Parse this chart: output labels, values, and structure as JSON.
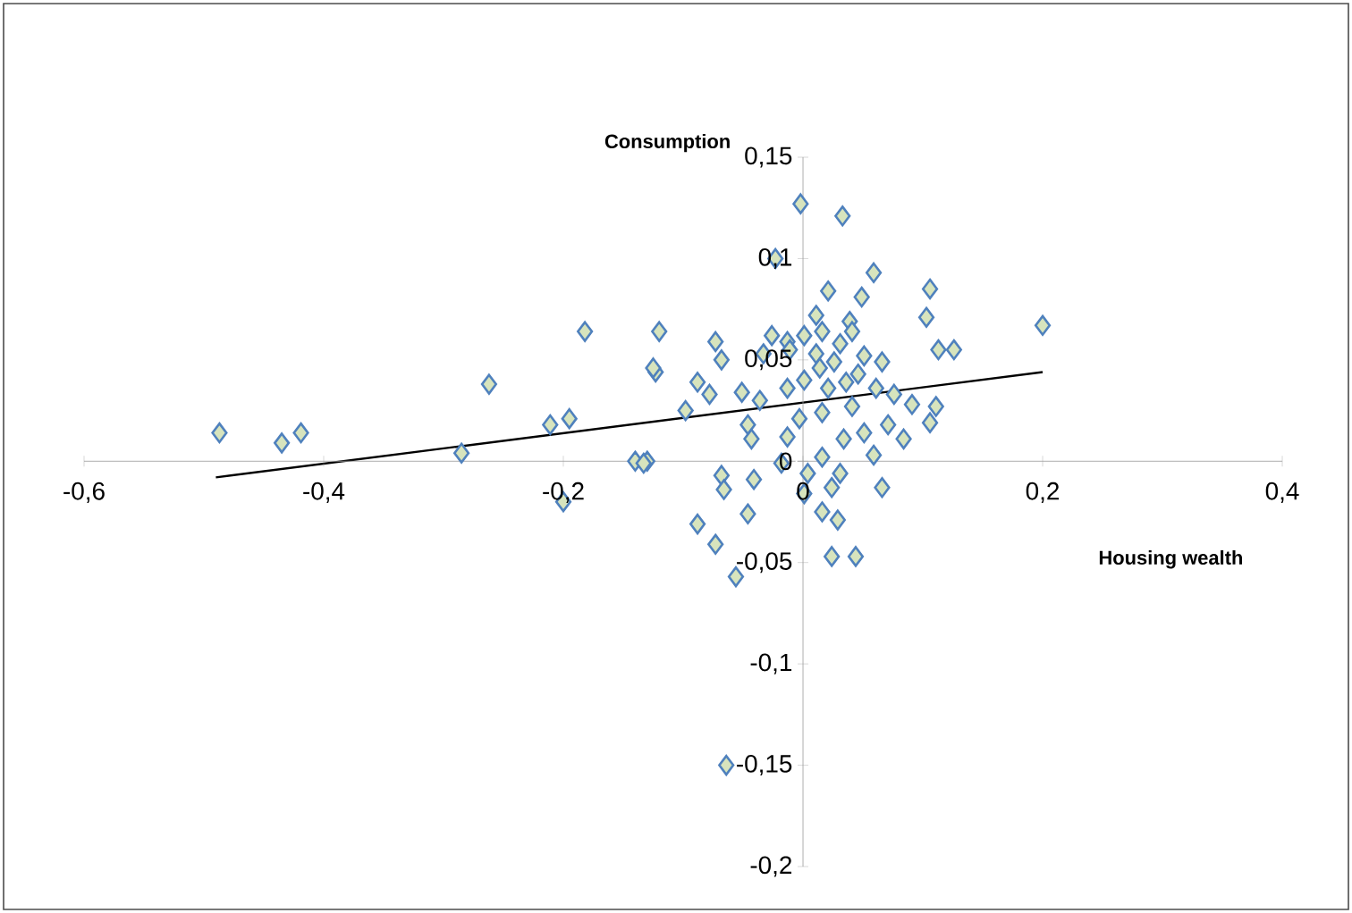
{
  "chart_data": {
    "type": "scatter",
    "xlabel": "Housing wealth",
    "ylabel": "Consumption",
    "xlim": [
      -0.6,
      0.4
    ],
    "ylim": [
      -0.2,
      0.15
    ],
    "xticks": [
      {
        "value": -0.6,
        "label": "-0,6"
      },
      {
        "value": -0.4,
        "label": "-0,4"
      },
      {
        "value": -0.2,
        "label": "-0,2"
      },
      {
        "value": 0,
        "label": "0"
      },
      {
        "value": 0.2,
        "label": "0,2"
      },
      {
        "value": 0.4,
        "label": "0,4"
      }
    ],
    "yticks": [
      {
        "value": -0.2,
        "label": "-0,2"
      },
      {
        "value": -0.15,
        "label": "-0,15"
      },
      {
        "value": -0.1,
        "label": "-0,1"
      },
      {
        "value": -0.05,
        "label": "-0,05"
      },
      {
        "value": 0,
        "label": "0"
      },
      {
        "value": 0.05,
        "label": "0,05"
      },
      {
        "value": 0.1,
        "label": "0,1"
      },
      {
        "value": 0.15,
        "label": "0,15"
      }
    ],
    "marker": "diamond",
    "grid": false,
    "series": [
      {
        "color": "#d7e4bd",
        "x": [
          -0.002,
          0.033,
          -0.023,
          0.059,
          0.106,
          0.021,
          0.049,
          0.103,
          0.011,
          0.039,
          -0.12,
          0.016,
          0.041,
          -0.073,
          -0.026,
          -0.013,
          0.001,
          0.031,
          -0.123,
          -0.033,
          -0.011,
          0.113,
          0.126,
          0.011,
          0.026,
          0.051,
          0.066,
          -0.068,
          -0.088,
          -0.078,
          -0.051,
          -0.036,
          -0.013,
          0.001,
          0.014,
          0.021,
          0.036,
          0.046,
          0.061,
          0.076,
          0.091,
          0.111,
          0.106,
          -0.098,
          -0.046,
          -0.003,
          0.016,
          0.041,
          0.071,
          -0.043,
          -0.013,
          0.034,
          0.051,
          0.084,
          -0.13,
          -0.018,
          0.016,
          0.059,
          -0.068,
          -0.041,
          0.004,
          0.031,
          0.066,
          -0.066,
          0.001,
          0.024,
          -0.046,
          0.016,
          -0.088,
          0.029,
          -0.073,
          0.024,
          0.044,
          -0.056,
          -0.487,
          -0.435,
          -0.419,
          -0.285,
          -0.262,
          -0.211,
          -0.195,
          -0.2,
          -0.182,
          -0.14,
          -0.133,
          -0.125,
          -0.064,
          0.2
        ],
        "values": [
          0.127,
          0.121,
          0.1,
          0.093,
          0.085,
          0.084,
          0.081,
          0.071,
          0.072,
          0.069,
          0.064,
          0.064,
          0.064,
          0.059,
          0.062,
          0.059,
          0.062,
          0.058,
          0.044,
          0.053,
          0.055,
          0.055,
          0.055,
          0.053,
          0.049,
          0.052,
          0.049,
          0.05,
          0.039,
          0.033,
          0.034,
          0.03,
          0.036,
          0.04,
          0.046,
          0.036,
          0.039,
          0.043,
          0.036,
          0.033,
          0.028,
          0.027,
          0.019,
          0.025,
          0.018,
          0.021,
          0.024,
          0.027,
          0.018,
          0.011,
          0.012,
          0.011,
          0.014,
          0.011,
          0.0,
          -0.001,
          0.002,
          0.003,
          -0.007,
          -0.009,
          -0.006,
          -0.006,
          -0.013,
          -0.014,
          -0.016,
          -0.013,
          -0.026,
          -0.025,
          -0.031,
          -0.029,
          -0.041,
          -0.047,
          -0.047,
          -0.057,
          0.014,
          0.009,
          0.014,
          0.004,
          0.038,
          0.018,
          0.021,
          -0.02,
          0.064,
          0.0,
          -0.001,
          0.046,
          -0.15,
          0.067
        ]
      },
      {
        "type": "line",
        "color": "#000000",
        "marker": "none",
        "x": [
          -0.49,
          0.2
        ],
        "values": [
          -0.008,
          0.044
        ]
      }
    ]
  }
}
